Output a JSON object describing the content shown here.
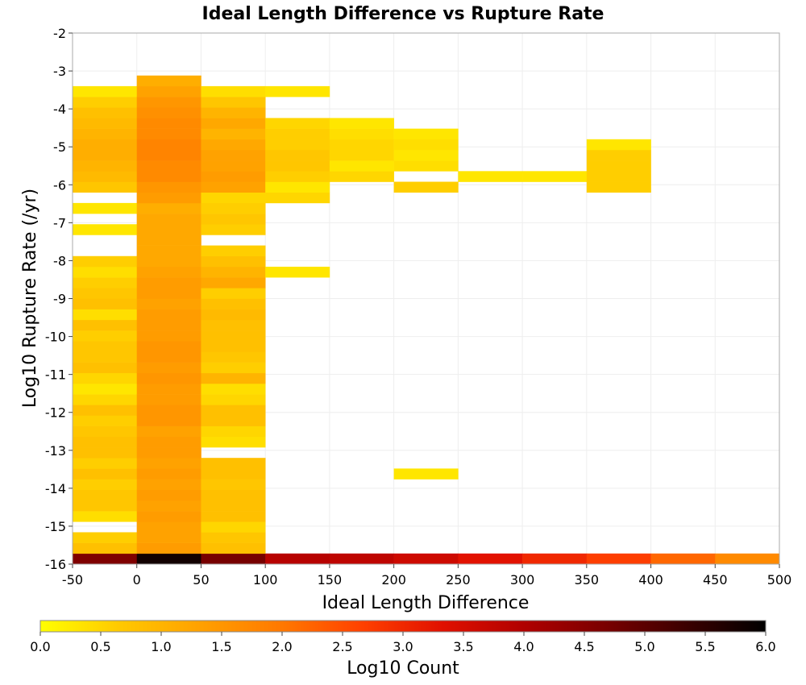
{
  "chart_data": {
    "type": "heatmap",
    "title": "Ideal Length Difference vs Rupture Rate",
    "xlabel": "Ideal Length Difference",
    "ylabel": "Log10 Rupture Rate (/yr)",
    "xlim": [
      -50,
      500
    ],
    "ylim": [
      -16,
      -2
    ],
    "x_ticks": [
      "-50",
      "0",
      "50",
      "100",
      "150",
      "200",
      "250",
      "300",
      "350",
      "400",
      "450",
      "500"
    ],
    "y_ticks": [
      "-16",
      "-15",
      "-14",
      "-13",
      "-12",
      "-11",
      "-10",
      "-9",
      "-8",
      "-7",
      "-6",
      "-5",
      "-4",
      "-3",
      "-2"
    ],
    "x_bin_width": 50,
    "y_bin_height": 0.28,
    "colorbar": {
      "label": "Log10 Count",
      "range": [
        0,
        6
      ],
      "ticks": [
        "0.0",
        "0.5",
        "1.0",
        "1.5",
        "2.0",
        "2.5",
        "3.0",
        "3.5",
        "4.0",
        "4.5",
        "5.0",
        "5.5",
        "6.0"
      ],
      "colors": [
        "#ffff00",
        "#ffc800",
        "#ffa000",
        "#ff7800",
        "#ff4000",
        "#e01000",
        "#b00000",
        "#7a0000",
        "#3c0000",
        "#000000"
      ]
    },
    "cells": [
      {
        "x": -50,
        "y": -16.0,
        "v": 4.6
      },
      {
        "x": 0,
        "y": -16.0,
        "v": 5.8
      },
      {
        "x": 50,
        "y": -16.0,
        "v": 4.7
      },
      {
        "x": 100,
        "y": -16.0,
        "v": 3.9
      },
      {
        "x": 150,
        "y": -16.0,
        "v": 3.8
      },
      {
        "x": 200,
        "y": -16.0,
        "v": 3.6
      },
      {
        "x": 250,
        "y": -16.0,
        "v": 3.3
      },
      {
        "x": 300,
        "y": -16.0,
        "v": 3.0
      },
      {
        "x": 350,
        "y": -16.0,
        "v": 2.7
      },
      {
        "x": 400,
        "y": -16.0,
        "v": 2.2
      },
      {
        "x": 450,
        "y": -16.0,
        "v": 1.7
      },
      {
        "x": -50,
        "y": -15.72,
        "v": 0.8
      },
      {
        "x": -50,
        "y": -15.44,
        "v": 0.6
      },
      {
        "x": -50,
        "y": -14.88,
        "v": 0.4
      },
      {
        "x": -50,
        "y": -14.6,
        "v": 0.7
      },
      {
        "x": -50,
        "y": -14.32,
        "v": 0.7
      },
      {
        "x": -50,
        "y": -14.04,
        "v": 0.6
      },
      {
        "x": -50,
        "y": -13.76,
        "v": 0.8
      },
      {
        "x": -50,
        "y": -13.48,
        "v": 0.6
      },
      {
        "x": -50,
        "y": -13.2,
        "v": 0.8
      },
      {
        "x": -50,
        "y": -12.92,
        "v": 0.8
      },
      {
        "x": -50,
        "y": -12.64,
        "v": 0.7
      },
      {
        "x": -50,
        "y": -12.36,
        "v": 0.6
      },
      {
        "x": -50,
        "y": -12.08,
        "v": 0.8
      },
      {
        "x": -50,
        "y": -11.8,
        "v": 0.5
      },
      {
        "x": -50,
        "y": -11.52,
        "v": 0.3
      },
      {
        "x": -50,
        "y": -11.24,
        "v": 0.5
      },
      {
        "x": -50,
        "y": -10.96,
        "v": 0.8
      },
      {
        "x": -50,
        "y": -10.68,
        "v": 0.7
      },
      {
        "x": -50,
        "y": -10.4,
        "v": 0.7
      },
      {
        "x": -50,
        "y": -10.12,
        "v": 0.6
      },
      {
        "x": -50,
        "y": -9.84,
        "v": 0.8
      },
      {
        "x": -50,
        "y": -9.56,
        "v": 0.4
      },
      {
        "x": -50,
        "y": -9.28,
        "v": 0.8
      },
      {
        "x": -50,
        "y": -9.0,
        "v": 0.7
      },
      {
        "x": -50,
        "y": -8.72,
        "v": 0.6
      },
      {
        "x": -50,
        "y": -8.44,
        "v": 0.4
      },
      {
        "x": -50,
        "y": -8.16,
        "v": 0.6
      },
      {
        "x": -50,
        "y": -7.32,
        "v": 0.3
      },
      {
        "x": -50,
        "y": -6.76,
        "v": 0.3
      },
      {
        "x": -50,
        "y": -6.2,
        "v": 0.7
      },
      {
        "x": -50,
        "y": -5.92,
        "v": 0.9
      },
      {
        "x": -50,
        "y": -5.64,
        "v": 1.0
      },
      {
        "x": -50,
        "y": -5.36,
        "v": 1.1
      },
      {
        "x": -50,
        "y": -5.08,
        "v": 1.1
      },
      {
        "x": -50,
        "y": -4.8,
        "v": 1.0
      },
      {
        "x": -50,
        "y": -4.52,
        "v": 0.9
      },
      {
        "x": -50,
        "y": -4.24,
        "v": 0.8
      },
      {
        "x": -50,
        "y": -3.96,
        "v": 0.6
      },
      {
        "x": -50,
        "y": -3.68,
        "v": 0.3
      },
      {
        "x": 0,
        "y": -15.72,
        "v": 1.4
      },
      {
        "x": 0,
        "y": -15.44,
        "v": 1.3
      },
      {
        "x": 0,
        "y": -15.16,
        "v": 1.3
      },
      {
        "x": 0,
        "y": -14.88,
        "v": 1.4
      },
      {
        "x": 0,
        "y": -14.6,
        "v": 1.3
      },
      {
        "x": 0,
        "y": -14.32,
        "v": 1.4
      },
      {
        "x": 0,
        "y": -14.04,
        "v": 1.3
      },
      {
        "x": 0,
        "y": -13.76,
        "v": 1.4
      },
      {
        "x": 0,
        "y": -13.48,
        "v": 1.3
      },
      {
        "x": 0,
        "y": -13.2,
        "v": 1.4
      },
      {
        "x": 0,
        "y": -12.92,
        "v": 1.4
      },
      {
        "x": 0,
        "y": -12.64,
        "v": 1.3
      },
      {
        "x": 0,
        "y": -12.36,
        "v": 1.5
      },
      {
        "x": 0,
        "y": -12.08,
        "v": 1.5
      },
      {
        "x": 0,
        "y": -11.8,
        "v": 1.4
      },
      {
        "x": 0,
        "y": -11.52,
        "v": 1.4
      },
      {
        "x": 0,
        "y": -11.24,
        "v": 1.5
      },
      {
        "x": 0,
        "y": -10.96,
        "v": 1.4
      },
      {
        "x": 0,
        "y": -10.68,
        "v": 1.5
      },
      {
        "x": 0,
        "y": -10.4,
        "v": 1.5
      },
      {
        "x": 0,
        "y": -10.12,
        "v": 1.4
      },
      {
        "x": 0,
        "y": -9.84,
        "v": 1.4
      },
      {
        "x": 0,
        "y": -9.56,
        "v": 1.4
      },
      {
        "x": 0,
        "y": -9.28,
        "v": 1.3
      },
      {
        "x": 0,
        "y": -9.0,
        "v": 1.4
      },
      {
        "x": 0,
        "y": -8.72,
        "v": 1.4
      },
      {
        "x": 0,
        "y": -8.44,
        "v": 1.3
      },
      {
        "x": 0,
        "y": -8.16,
        "v": 1.2
      },
      {
        "x": 0,
        "y": -7.88,
        "v": 1.2
      },
      {
        "x": 0,
        "y": -7.6,
        "v": 1.2
      },
      {
        "x": 0,
        "y": -7.32,
        "v": 1.2
      },
      {
        "x": 0,
        "y": -7.04,
        "v": 1.2
      },
      {
        "x": 0,
        "y": -6.76,
        "v": 1.1
      },
      {
        "x": 0,
        "y": -6.48,
        "v": 1.4
      },
      {
        "x": 0,
        "y": -6.2,
        "v": 1.5
      },
      {
        "x": 0,
        "y": -5.92,
        "v": 1.7
      },
      {
        "x": 0,
        "y": -5.64,
        "v": 1.7
      },
      {
        "x": 0,
        "y": -5.36,
        "v": 1.8
      },
      {
        "x": 0,
        "y": -5.08,
        "v": 1.8
      },
      {
        "x": 0,
        "y": -4.8,
        "v": 1.7
      },
      {
        "x": 0,
        "y": -4.52,
        "v": 1.7
      },
      {
        "x": 0,
        "y": -4.24,
        "v": 1.6
      },
      {
        "x": 0,
        "y": -3.96,
        "v": 1.5
      },
      {
        "x": 0,
        "y": -3.68,
        "v": 1.3
      },
      {
        "x": 0,
        "y": -3.4,
        "v": 1.1
      },
      {
        "x": 50,
        "y": -15.72,
        "v": 0.8
      },
      {
        "x": 50,
        "y": -15.44,
        "v": 0.7
      },
      {
        "x": 50,
        "y": -15.16,
        "v": 0.5
      },
      {
        "x": 50,
        "y": -14.88,
        "v": 0.8
      },
      {
        "x": 50,
        "y": -14.6,
        "v": 0.8
      },
      {
        "x": 50,
        "y": -14.32,
        "v": 0.8
      },
      {
        "x": 50,
        "y": -14.04,
        "v": 0.7
      },
      {
        "x": 50,
        "y": -13.76,
        "v": 0.8
      },
      {
        "x": 50,
        "y": -13.48,
        "v": 0.8
      },
      {
        "x": 50,
        "y": -12.92,
        "v": 0.4
      },
      {
        "x": 50,
        "y": -12.64,
        "v": 0.5
      },
      {
        "x": 50,
        "y": -12.36,
        "v": 0.8
      },
      {
        "x": 50,
        "y": -12.08,
        "v": 0.8
      },
      {
        "x": 50,
        "y": -11.8,
        "v": 0.5
      },
      {
        "x": 50,
        "y": -11.52,
        "v": 0.4
      },
      {
        "x": 50,
        "y": -11.24,
        "v": 1.0
      },
      {
        "x": 50,
        "y": -10.96,
        "v": 0.6
      },
      {
        "x": 50,
        "y": -10.68,
        "v": 0.7
      },
      {
        "x": 50,
        "y": -10.4,
        "v": 0.8
      },
      {
        "x": 50,
        "y": -10.12,
        "v": 0.8
      },
      {
        "x": 50,
        "y": -9.84,
        "v": 0.8
      },
      {
        "x": 50,
        "y": -9.56,
        "v": 0.9
      },
      {
        "x": 50,
        "y": -9.28,
        "v": 0.8
      },
      {
        "x": 50,
        "y": -9.0,
        "v": 0.6
      },
      {
        "x": 50,
        "y": -8.72,
        "v": 1.2
      },
      {
        "x": 50,
        "y": -8.44,
        "v": 1.0
      },
      {
        "x": 50,
        "y": -8.16,
        "v": 0.8
      },
      {
        "x": 50,
        "y": -7.88,
        "v": 0.6
      },
      {
        "x": 50,
        "y": -7.32,
        "v": 0.6
      },
      {
        "x": 50,
        "y": -7.04,
        "v": 0.7
      },
      {
        "x": 50,
        "y": -6.76,
        "v": 0.6
      },
      {
        "x": 50,
        "y": -6.48,
        "v": 0.5
      },
      {
        "x": 50,
        "y": -6.2,
        "v": 1.3
      },
      {
        "x": 50,
        "y": -5.92,
        "v": 1.4
      },
      {
        "x": 50,
        "y": -5.64,
        "v": 1.3
      },
      {
        "x": 50,
        "y": -5.36,
        "v": 1.3
      },
      {
        "x": 50,
        "y": -5.08,
        "v": 1.2
      },
      {
        "x": 50,
        "y": -4.8,
        "v": 1.0
      },
      {
        "x": 50,
        "y": -4.52,
        "v": 1.2
      },
      {
        "x": 50,
        "y": -4.24,
        "v": 1.0
      },
      {
        "x": 50,
        "y": -3.96,
        "v": 0.7
      },
      {
        "x": 50,
        "y": -3.68,
        "v": 0.4
      },
      {
        "x": 100,
        "y": -8.44,
        "v": 0.3
      },
      {
        "x": 100,
        "y": -6.48,
        "v": 0.5
      },
      {
        "x": 100,
        "y": -6.2,
        "v": 0.3
      },
      {
        "x": 100,
        "y": -5.92,
        "v": 0.6
      },
      {
        "x": 100,
        "y": -5.64,
        "v": 0.7
      },
      {
        "x": 100,
        "y": -5.36,
        "v": 0.7
      },
      {
        "x": 100,
        "y": -5.08,
        "v": 0.6
      },
      {
        "x": 100,
        "y": -4.8,
        "v": 0.6
      },
      {
        "x": 100,
        "y": -4.52,
        "v": 0.5
      },
      {
        "x": 100,
        "y": -3.68,
        "v": 0.3
      },
      {
        "x": 150,
        "y": -5.92,
        "v": 0.5
      },
      {
        "x": 150,
        "y": -5.64,
        "v": 0.3
      },
      {
        "x": 150,
        "y": -5.36,
        "v": 0.5
      },
      {
        "x": 150,
        "y": -5.08,
        "v": 0.5
      },
      {
        "x": 150,
        "y": -4.8,
        "v": 0.4
      },
      {
        "x": 150,
        "y": -4.52,
        "v": 0.3
      },
      {
        "x": 200,
        "y": -13.76,
        "v": 0.3
      },
      {
        "x": 200,
        "y": -6.2,
        "v": 0.6
      },
      {
        "x": 200,
        "y": -5.64,
        "v": 0.4
      },
      {
        "x": 200,
        "y": -5.36,
        "v": 0.3
      },
      {
        "x": 200,
        "y": -5.08,
        "v": 0.4
      },
      {
        "x": 200,
        "y": -4.8,
        "v": 0.3
      },
      {
        "x": 250,
        "y": -5.92,
        "v": 0.3
      },
      {
        "x": 300,
        "y": -5.92,
        "v": 0.3
      },
      {
        "x": 350,
        "y": -6.2,
        "v": 0.6
      },
      {
        "x": 350,
        "y": -5.92,
        "v": 0.6
      },
      {
        "x": 350,
        "y": -5.64,
        "v": 0.6
      },
      {
        "x": 350,
        "y": -5.36,
        "v": 0.6
      },
      {
        "x": 350,
        "y": -5.08,
        "v": 0.3
      }
    ]
  }
}
